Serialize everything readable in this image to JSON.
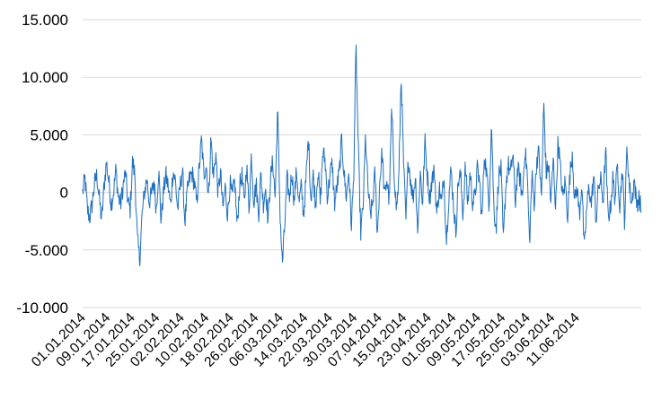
{
  "chart_data": {
    "type": "line",
    "title": "",
    "xlabel": "",
    "ylabel": "",
    "ylim": [
      -10000,
      15000
    ],
    "y_ticks": [
      15000,
      10000,
      5000,
      0,
      -5000,
      -10000
    ],
    "y_tick_labels": [
      "15.000",
      "10.000",
      "5.000",
      "0",
      "-5.000",
      "-10.000"
    ],
    "x_tick_labels": [
      "01.01.2014",
      "09.01.2014",
      "17.01.2014",
      "25.01.2014",
      "02.02.2014",
      "10.02.2014",
      "18.02.2014",
      "26.02.2014",
      "06.03.2014",
      "14.03.2014",
      "22.03.2014",
      "30.03.2014",
      "07.04.2014",
      "15.04.2014",
      "23.04.2014",
      "01.05.2014",
      "09.05.2014",
      "17.05.2014",
      "25.05.2014",
      "03.06.2014",
      "11.06.2014"
    ],
    "x_range": [
      "2014-01-01",
      "2014-06-22"
    ],
    "grid": "horizontal",
    "legend": "none",
    "series_color": "#1f6fbf",
    "sampling": "hourly, values approximated",
    "series": [
      {
        "values": [
          0,
          1200,
          -1500,
          -2200,
          -1000,
          800,
          1500,
          -500,
          -2500,
          500,
          2600,
          1000,
          -1000,
          0,
          2000,
          -400,
          -1000,
          500,
          1800,
          -800,
          -1500,
          2700,
          1500,
          -4000,
          -5900,
          -2000,
          0,
          1200,
          -800,
          -200,
          1000,
          -1500,
          2000,
          -2500,
          0,
          1500,
          500,
          -1200,
          1900,
          1000,
          -1500,
          500,
          2000,
          -2600,
          0,
          1200,
          1700,
          800,
          -1000,
          2000,
          4600,
          1500,
          2500,
          -500,
          4800,
          1200,
          3500,
          -200,
          1800,
          -1500,
          500,
          -2000,
          800,
          -500,
          1000,
          -3000,
          500,
          1500,
          -1000,
          2500,
          -1500,
          3300,
          -800,
          800,
          -2000,
          1600,
          -1000,
          500,
          -2500,
          1200,
          2700,
          -500,
          7400,
          -1500,
          -6300,
          -3000,
          1200,
          -500,
          1800,
          -800,
          2000,
          -1000,
          500,
          -2000,
          1200,
          4800,
          -500,
          1500,
          -1000,
          2000,
          -1000,
          3500,
          2800,
          -500,
          1500,
          2500,
          -1000,
          500,
          1800,
          4700,
          1500,
          -500,
          2000,
          -3000,
          1000,
          12700,
          3500,
          -3500,
          -1200,
          4800,
          500,
          -2000,
          -1000,
          1800,
          -3800,
          1000,
          3500,
          -500,
          1200,
          -800,
          7200,
          2000,
          -1500,
          1000,
          10400,
          2500,
          -2500,
          3000,
          1000,
          -500,
          1500,
          -3500,
          2000,
          -1000,
          4500,
          1500,
          -500,
          1200,
          1800,
          -2000,
          500,
          -1000,
          1500,
          -4300,
          -500,
          2000,
          -1000,
          -3500,
          1000,
          1500,
          -2000,
          2300,
          -1000,
          1800,
          -800,
          -500,
          2000,
          1000,
          -2500,
          3500,
          1500,
          -1000,
          6200,
          -1500,
          -3000,
          1500,
          2000,
          -4300,
          500,
          2500,
          1500,
          3500,
          -1000,
          2000,
          1200,
          -500,
          3800,
          1800,
          -4500,
          1500,
          -1000,
          2800,
          3500,
          -800,
          7800,
          1500,
          2500,
          -1000,
          3000,
          -1500,
          4600,
          2000,
          -500,
          1000,
          -2000,
          1500,
          3500,
          -800,
          500,
          -2000,
          1000,
          -5200,
          -1500,
          500,
          -1000,
          1500,
          -2500,
          500,
          1000,
          -800,
          3800,
          -2000,
          -1500,
          1200,
          -500,
          2400,
          -1200,
          2100,
          -2600,
          4000,
          500,
          -1000,
          1200,
          -1000,
          -500,
          -1500
        ]
      }
    ]
  }
}
